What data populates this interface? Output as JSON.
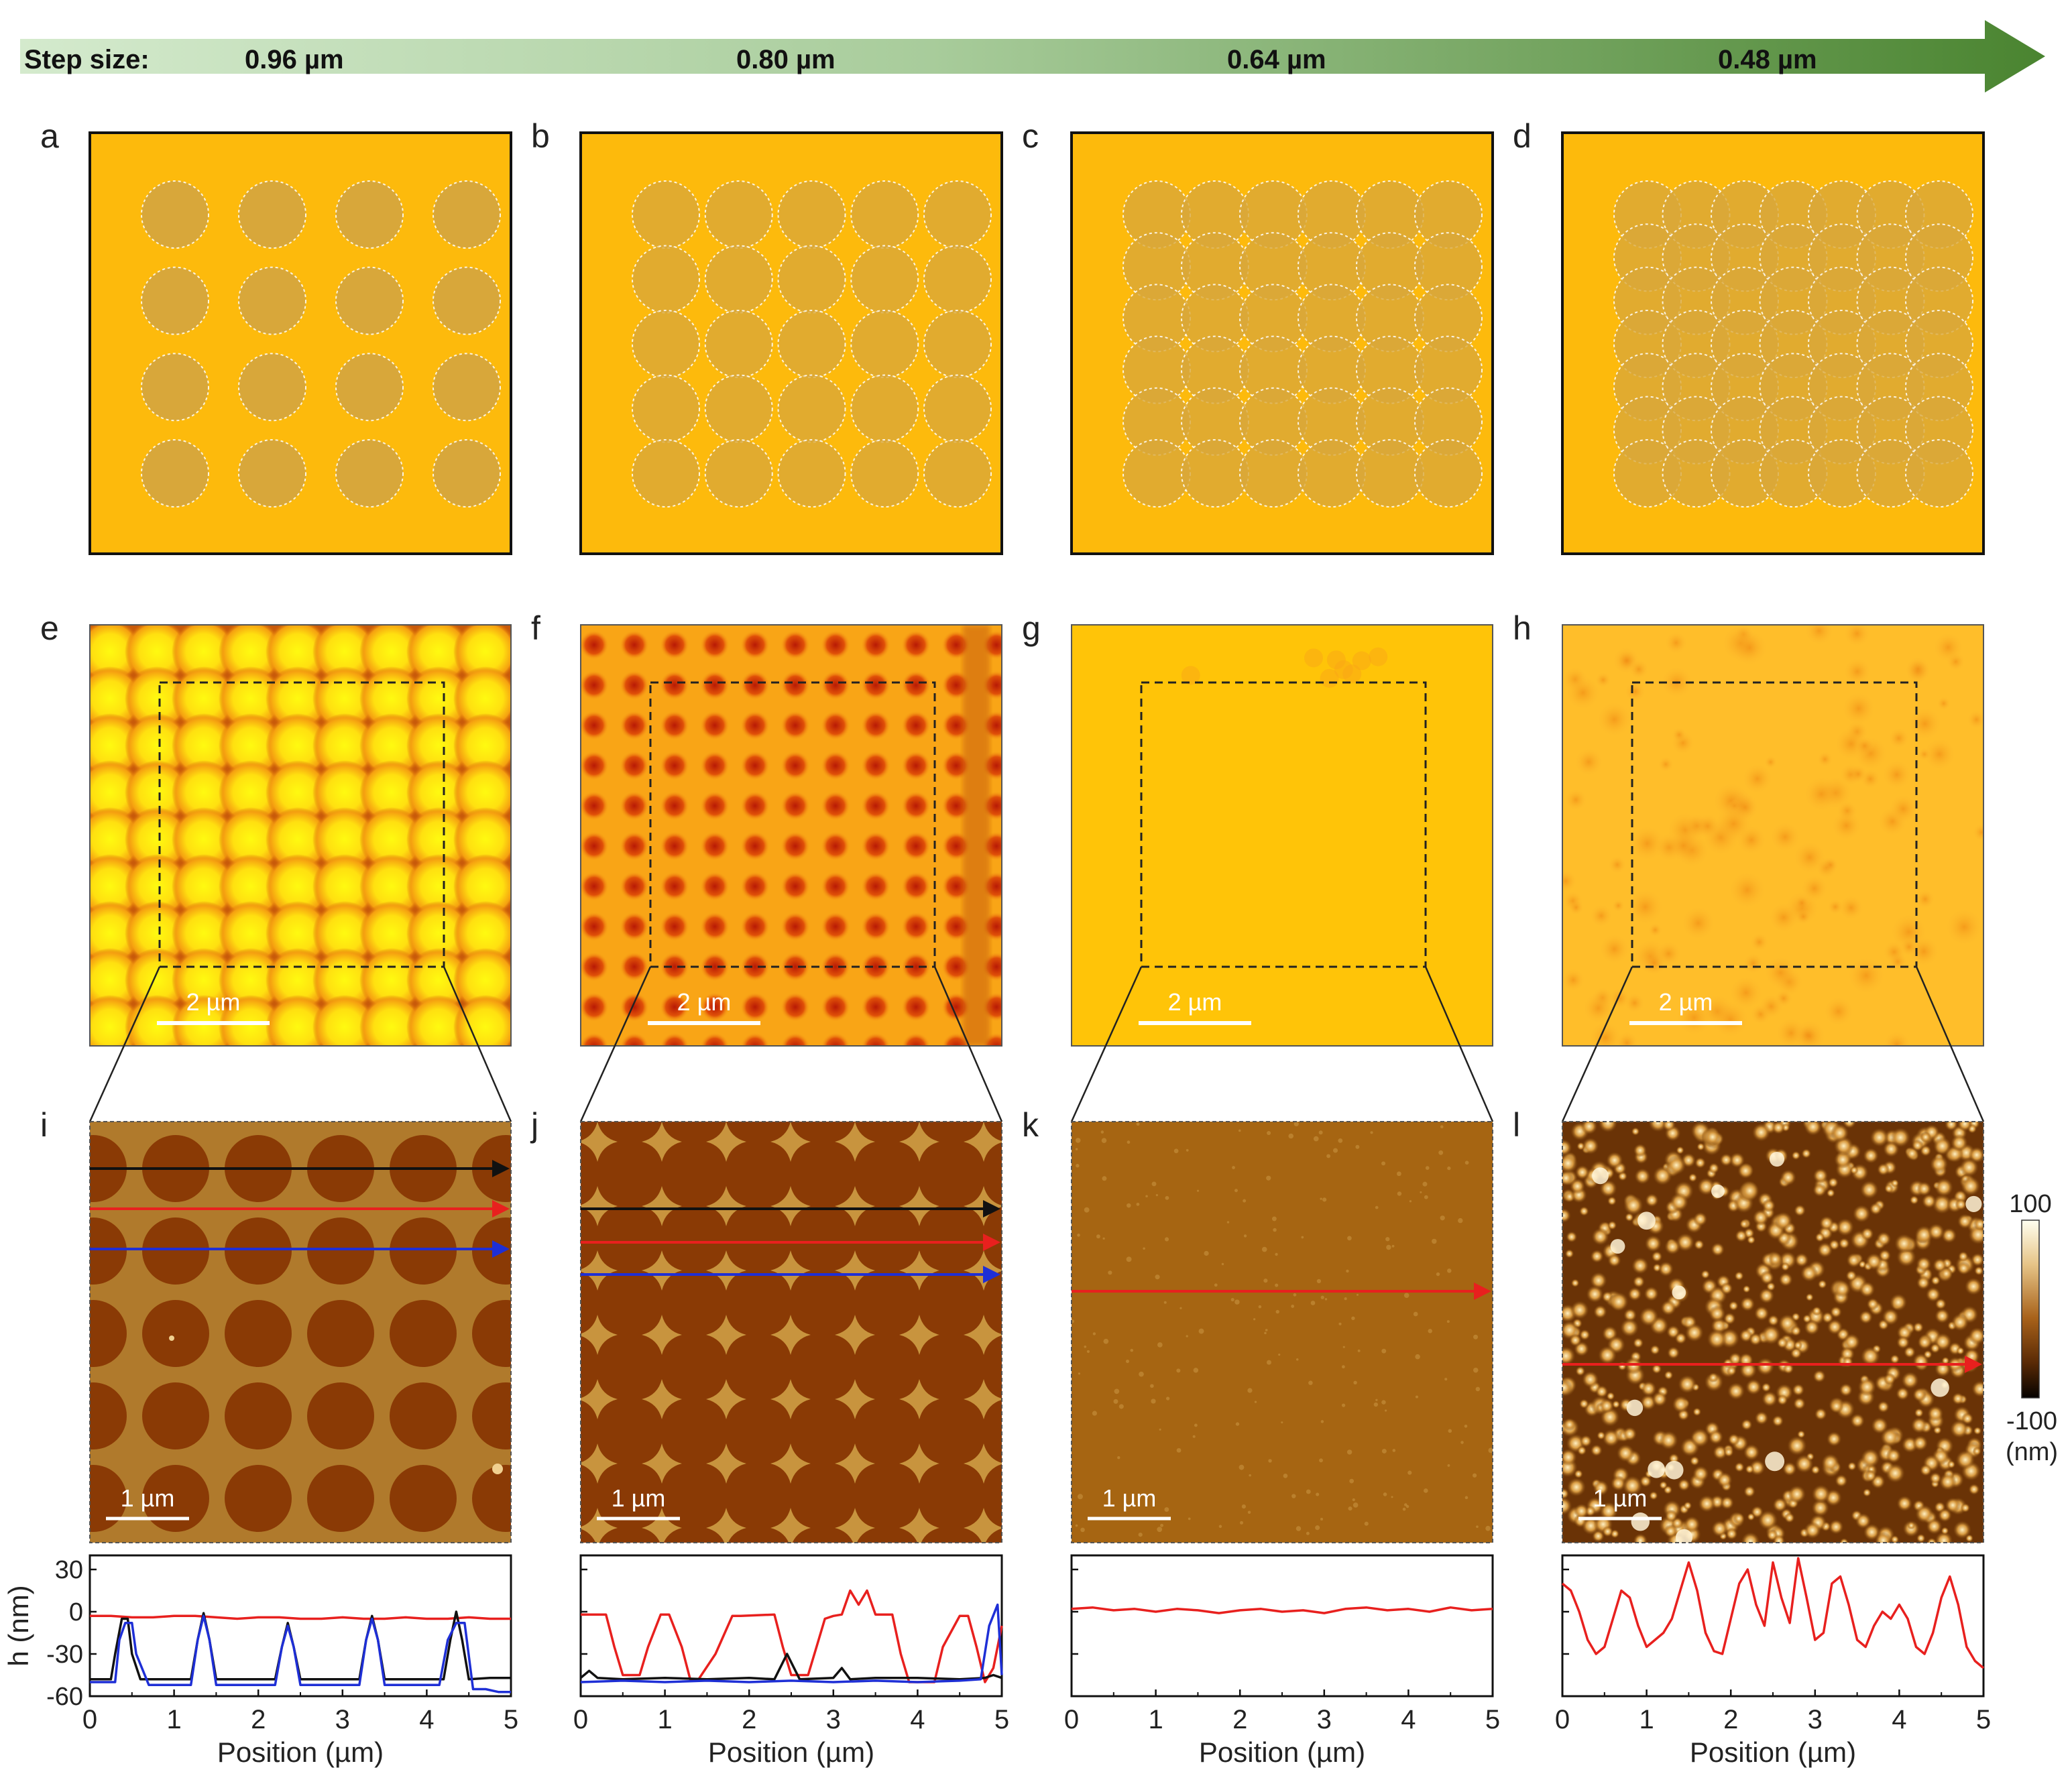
{
  "header": {
    "step_label": "Step size:",
    "steps": [
      "0.96 µm",
      "0.80 µm",
      "0.64 µm",
      "0.48 µm"
    ]
  },
  "panels": {
    "schematic_letters": [
      "a",
      "b",
      "c",
      "d"
    ],
    "map_letters": [
      "e",
      "f",
      "g",
      "h"
    ],
    "afm_letters": [
      "i",
      "j",
      "k",
      "l"
    ],
    "map_scalebar": "2 µm",
    "afm_scalebar": "1 µm"
  },
  "colorbar": {
    "max_label": "100",
    "min_label": "-100",
    "unit_label": "(nm)"
  },
  "colors": {
    "substrate": "#FDBA0C",
    "dot": "#D8A73A",
    "arrow_start": "#CDE6C6",
    "arrow_end": "#4F8A35"
  },
  "chart_data": [
    {
      "type": "line",
      "panel": "i",
      "xlabel": "Position (µm)",
      "ylabel": "h (nm)",
      "xlim": [
        0,
        5
      ],
      "ylim": [
        -60,
        40
      ],
      "x_ticks": [
        "0",
        "1",
        "2",
        "3",
        "4",
        "5"
      ],
      "y_ticks": [
        "30",
        "0",
        "-30",
        "-60"
      ],
      "series": [
        {
          "name": "red",
          "color": "#E8201E",
          "x": [
            0,
            0.25,
            0.5,
            0.75,
            1,
            1.25,
            1.5,
            1.75,
            2,
            2.25,
            2.5,
            2.75,
            3,
            3.25,
            3.5,
            3.75,
            4,
            4.25,
            4.5,
            4.75,
            5
          ],
          "y": [
            -3,
            -3,
            -4,
            -4,
            -3,
            -3,
            -4,
            -5,
            -4,
            -4,
            -5,
            -5,
            -4,
            -5,
            -5,
            -4,
            -5,
            -5,
            -4,
            -5,
            -5
          ]
        },
        {
          "name": "black",
          "color": "#111111",
          "x": [
            0,
            0.25,
            0.3,
            0.38,
            0.45,
            0.5,
            0.6,
            1.2,
            1.28,
            1.35,
            1.42,
            1.5,
            2.2,
            2.28,
            2.35,
            2.42,
            2.5,
            3.2,
            3.28,
            3.35,
            3.42,
            3.5,
            4.2,
            4.28,
            4.35,
            4.42,
            4.5,
            4.75,
            5
          ],
          "y": [
            -48,
            -48,
            -30,
            -5,
            -5,
            -30,
            -48,
            -48,
            -20,
            -1,
            -20,
            -48,
            -48,
            -25,
            -8,
            -25,
            -48,
            -48,
            -20,
            -3,
            -20,
            -48,
            -48,
            -20,
            0,
            -20,
            -48,
            -47,
            -47
          ]
        },
        {
          "name": "blue",
          "color": "#1E2FD6",
          "x": [
            0,
            0.3,
            0.35,
            0.42,
            0.5,
            0.55,
            0.7,
            1.2,
            1.28,
            1.35,
            1.42,
            1.5,
            2.2,
            2.28,
            2.35,
            2.42,
            2.5,
            3.2,
            3.28,
            3.35,
            3.42,
            3.5,
            4.15,
            4.25,
            4.35,
            4.45,
            4.55,
            4.7,
            4.85,
            5
          ],
          "y": [
            -50,
            -50,
            -20,
            -8,
            -8,
            -30,
            -52,
            -52,
            -20,
            -3,
            -20,
            -52,
            -52,
            -25,
            -10,
            -25,
            -52,
            -52,
            -20,
            -5,
            -20,
            -52,
            -52,
            -20,
            -8,
            -8,
            -55,
            -55,
            -57,
            -57
          ]
        }
      ]
    },
    {
      "type": "line",
      "panel": "j",
      "xlabel": "Position (µm)",
      "ylabel": "",
      "xlim": [
        0,
        5
      ],
      "ylim": [
        -60,
        40
      ],
      "x_ticks": [
        "0",
        "1",
        "2",
        "3",
        "4",
        "5"
      ],
      "y_ticks": [],
      "series": [
        {
          "name": "red",
          "color": "#E8201E",
          "x": [
            0,
            0.3,
            0.4,
            0.5,
            0.7,
            0.8,
            0.95,
            1.05,
            1.2,
            1.3,
            1.4,
            1.6,
            1.8,
            1.9,
            2.3,
            2.4,
            2.5,
            2.7,
            2.8,
            2.9,
            3.0,
            3.1,
            3.2,
            3.3,
            3.4,
            3.5,
            3.7,
            3.8,
            3.9,
            4.2,
            4.3,
            4.5,
            4.6,
            4.7,
            4.8,
            4.9,
            5
          ],
          "y": [
            -2,
            -2,
            -25,
            -45,
            -45,
            -25,
            -2,
            -2,
            -25,
            -48,
            -48,
            -30,
            -3,
            -3,
            -2,
            -25,
            -45,
            -45,
            -25,
            -5,
            -3,
            -2,
            15,
            5,
            15,
            -2,
            -2,
            -30,
            -50,
            -50,
            -25,
            -3,
            -3,
            -25,
            -50,
            -40,
            -10
          ]
        },
        {
          "name": "black",
          "color": "#111111",
          "x": [
            0,
            0.1,
            0.2,
            0.5,
            1,
            1.5,
            2,
            2.3,
            2.45,
            2.6,
            3,
            3.1,
            3.2,
            3.5,
            4,
            4.5,
            4.8,
            4.9,
            5
          ],
          "y": [
            -47,
            -42,
            -47,
            -48,
            -47,
            -48,
            -47,
            -48,
            -30,
            -48,
            -47,
            -40,
            -48,
            -47,
            -47,
            -48,
            -47,
            -45,
            -47
          ]
        },
        {
          "name": "blue",
          "color": "#1E2FD6",
          "x": [
            0,
            0.5,
            1,
            1.5,
            2,
            2.5,
            3,
            3.5,
            4,
            4.5,
            4.75,
            4.85,
            4.95,
            5
          ],
          "y": [
            -50,
            -49,
            -50,
            -49,
            -50,
            -49,
            -50,
            -49,
            -50,
            -49,
            -48,
            -10,
            5,
            -45
          ]
        }
      ]
    },
    {
      "type": "line",
      "panel": "k",
      "xlabel": "Position (µm)",
      "ylabel": "",
      "xlim": [
        0,
        5
      ],
      "ylim": [
        -60,
        40
      ],
      "x_ticks": [
        "0",
        "1",
        "2",
        "3",
        "4",
        "5"
      ],
      "y_ticks": [],
      "series": [
        {
          "name": "red",
          "color": "#E8201E",
          "x": [
            0,
            0.25,
            0.5,
            0.75,
            1,
            1.25,
            1.5,
            1.75,
            2,
            2.25,
            2.5,
            2.75,
            3,
            3.25,
            3.5,
            3.75,
            4,
            4.25,
            4.5,
            4.75,
            5
          ],
          "y": [
            2,
            3,
            1,
            2,
            0,
            2,
            1,
            -1,
            1,
            2,
            0,
            1,
            -1,
            2,
            3,
            1,
            2,
            0,
            3,
            1,
            2
          ]
        }
      ]
    },
    {
      "type": "line",
      "panel": "l",
      "xlabel": "Position (µm)",
      "ylabel": "",
      "xlim": [
        0,
        5
      ],
      "ylim": [
        -60,
        40
      ],
      "x_ticks": [
        "0",
        "1",
        "2",
        "3",
        "4",
        "5"
      ],
      "y_ticks": [],
      "series": [
        {
          "name": "red",
          "color": "#E8201E",
          "x": [
            0,
            0.1,
            0.2,
            0.3,
            0.4,
            0.5,
            0.6,
            0.7,
            0.8,
            0.9,
            1.0,
            1.1,
            1.2,
            1.3,
            1.4,
            1.5,
            1.6,
            1.7,
            1.8,
            1.9,
            2.0,
            2.1,
            2.2,
            2.3,
            2.4,
            2.5,
            2.6,
            2.7,
            2.8,
            2.9,
            3.0,
            3.1,
            3.2,
            3.3,
            3.4,
            3.5,
            3.6,
            3.7,
            3.8,
            3.9,
            4.0,
            4.1,
            4.2,
            4.3,
            4.4,
            4.5,
            4.6,
            4.7,
            4.8,
            4.9,
            5
          ],
          "y": [
            20,
            15,
            0,
            -20,
            -30,
            -25,
            -5,
            15,
            10,
            -10,
            -25,
            -20,
            -15,
            -5,
            15,
            35,
            15,
            -15,
            -28,
            -30,
            -5,
            20,
            30,
            5,
            -10,
            35,
            10,
            -8,
            38,
            10,
            -20,
            -15,
            20,
            25,
            5,
            -20,
            -25,
            -10,
            0,
            -5,
            5,
            -5,
            -25,
            -30,
            -15,
            10,
            25,
            5,
            -25,
            -35,
            -40
          ]
        }
      ]
    }
  ]
}
